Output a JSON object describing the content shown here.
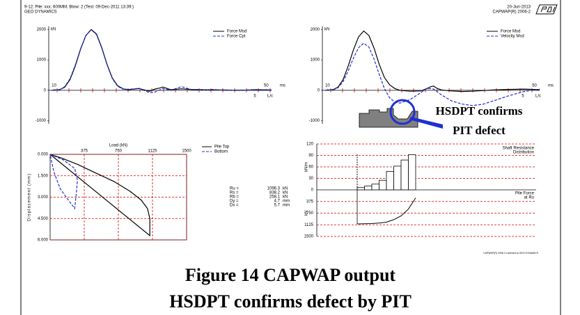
{
  "header": {
    "left": [
      "9-12; Pile: xxx; 600MM; Btow: 2 (Test: 09-Dec-2011 13:39:)",
      "GEO DYNAMICS"
    ],
    "right": [
      "20-Jun-2013",
      "CAPWAP(R) 2006-2"
    ]
  },
  "chart_data": [
    {
      "type": "line",
      "y_label": "kN",
      "x_label": "ms",
      "x2_label": "L/c",
      "x2_tick": "5",
      "x": [
        9.5,
        11,
        12,
        13,
        14,
        15,
        16,
        17,
        18,
        19,
        20,
        21,
        22,
        23,
        24,
        26,
        28,
        29,
        30,
        30.5,
        31,
        32,
        34,
        36,
        38,
        40,
        42,
        45,
        48,
        51
      ],
      "series": [
        {
          "name": "Force Msd",
          "color": "#000000",
          "dashed": false,
          "values": [
            0,
            20,
            100,
            350,
            800,
            1350,
            1800,
            2000,
            1850,
            1400,
            850,
            400,
            150,
            50,
            20,
            60,
            -30,
            40,
            80,
            110,
            80,
            20,
            50,
            30,
            20,
            10,
            10,
            0,
            20,
            10
          ]
        },
        {
          "name": "Force Cpt",
          "color": "#1f2fd6",
          "dashed": true,
          "values": [
            0,
            10,
            120,
            380,
            830,
            1370,
            1800,
            1990,
            1830,
            1380,
            830,
            380,
            130,
            40,
            30,
            70,
            -80,
            -60,
            20,
            60,
            40,
            0,
            120,
            20,
            10,
            30,
            0,
            10,
            0,
            0
          ]
        }
      ],
      "xlim": [
        9,
        51
      ],
      "ylim": [
        -1100,
        2100
      ],
      "xticks": [
        10,
        50
      ],
      "yticks": [
        -1000,
        0,
        1000,
        2000
      ]
    },
    {
      "type": "line",
      "y_label": "kN",
      "x_label": "ms",
      "x2_label": "L/c",
      "x2_tick": "5",
      "x": [
        9.5,
        11,
        12,
        13,
        14,
        15,
        16,
        17,
        18,
        19,
        20,
        21,
        22,
        23,
        24,
        26,
        28,
        29,
        30,
        30.5,
        31,
        32,
        34,
        36,
        38,
        40,
        42,
        45,
        48,
        51
      ],
      "series": [
        {
          "name": "Force Msd",
          "color": "#000000",
          "dashed": false,
          "values": [
            0,
            20,
            100,
            350,
            800,
            1330,
            1760,
            1950,
            1800,
            1380,
            850,
            420,
            180,
            60,
            0,
            -30,
            -20,
            40,
            120,
            140,
            80,
            10,
            -20,
            -40,
            -30,
            -10,
            10,
            30,
            40,
            20
          ]
        },
        {
          "name": "Velocity Msd",
          "color": "#1f2fd6",
          "dashed": true,
          "values": [
            0,
            10,
            80,
            280,
            640,
            1060,
            1400,
            1550,
            1420,
            1020,
            520,
            60,
            -250,
            -380,
            -420,
            -300,
            -80,
            40,
            60,
            40,
            -20,
            -150,
            -350,
            -450,
            -500,
            -460,
            -350,
            -180,
            -40,
            40
          ]
        }
      ],
      "xlim": [
        9,
        51
      ],
      "ylim": [
        -1100,
        2100
      ],
      "xticks": [
        10,
        50
      ],
      "yticks": [
        -1000,
        0,
        1000,
        2000
      ]
    },
    {
      "type": "load_displacement",
      "title": "Load (kN)",
      "y_label": "Displacement (mm)",
      "xlim": [
        0,
        1500
      ],
      "ylim": [
        0,
        6
      ],
      "xticks": [
        375,
        750,
        1125,
        1500
      ],
      "yticks": [
        {
          "value": 0,
          "label": "0.000"
        },
        {
          "value": 1.5,
          "label": "1.500"
        },
        {
          "value": 3,
          "label": "3.000"
        },
        {
          "value": 4.5,
          "label": "4.500"
        },
        {
          "value": 6,
          "label": "6.000"
        }
      ],
      "series": [
        {
          "name": "Pile Top",
          "color": "#000000",
          "dashed": false,
          "x": [
            0,
            1096,
            1096,
            1070,
            1000,
            880,
            700,
            500,
            300,
            120,
            0
          ],
          "values": [
            0,
            5.7,
            4.5,
            3.8,
            3.2,
            2.6,
            1.9,
            1.3,
            0.7,
            0.25,
            0
          ]
        },
        {
          "name": "Bottom",
          "color": "#1f2fd6",
          "dashed": true,
          "x": [
            0,
            150,
            270,
            300,
            290,
            270,
            200,
            110,
            40,
            0
          ],
          "values": [
            0,
            0.4,
            1.0,
            1.8,
            2.6,
            3.8,
            3.2,
            2.4,
            1.2,
            0
          ]
        }
      ],
      "results": [
        {
          "label": "Ru =",
          "value": 1096.3,
          "unit": "kN"
        },
        {
          "label": "Rs =",
          "value": 838.2,
          "unit": "kN"
        },
        {
          "label": "Rb =",
          "value": 258.1,
          "unit": "kN"
        },
        {
          "label": "Dy =",
          "value": 4.7,
          "unit": "mm"
        },
        {
          "label": "Dx =",
          "value": 5.7,
          "unit": "mm"
        }
      ]
    },
    {
      "type": "resistance_distribution",
      "top_text": [
        "Shaft Resistance",
        "Distribution"
      ],
      "bottom_text": [
        "Pile Force",
        "at Ru"
      ],
      "top_axis_label": "kN/m",
      "bottom_axis_label": "kN",
      "ylim_top": [
        0,
        120
      ],
      "yticks_top": [
        0,
        30,
        60,
        90,
        120
      ],
      "ylim_bottom": [
        0,
        1500
      ],
      "yticks_bottom": [
        375,
        750,
        1125,
        1500
      ],
      "shaft_resistance": [
        6,
        10,
        15,
        25,
        48,
        62,
        78,
        92
      ],
      "pile_force": [
        1096,
        1092,
        1085,
        1070,
        1040,
        960,
        840,
        620,
        258
      ]
    }
  ],
  "annotation": [
    "HSDPT confirms",
    "PIT defect"
  ],
  "footer_note": "CAPWAP(R) 2006-2 Licensed to GEO DYNAMICS",
  "caption": [
    "Figure 14 CAPWAP output",
    "HSDPT confirms defect by PIT"
  ]
}
